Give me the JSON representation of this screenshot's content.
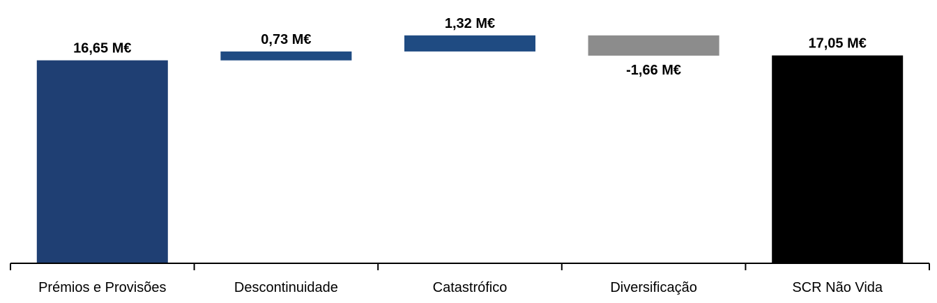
{
  "chart_data": {
    "type": "bar",
    "subtype": "waterfall",
    "categories": [
      "Prémios e Provisões",
      "Descontinuidade",
      "Catastrófico",
      "Diversificação",
      "SCR Não Vida"
    ],
    "values": [
      16.65,
      0.73,
      1.32,
      -1.66,
      17.05
    ],
    "data_labels": [
      "16,65 M€",
      "0,73 M€",
      "1,32 M€",
      "-1,66 M€",
      "17,05 M€"
    ],
    "bar_kinds": [
      "total",
      "increase",
      "increase",
      "decrease",
      "total"
    ],
    "colors": {
      "total_first": "#1F3F73",
      "increase": "#1F4B82",
      "decrease": "#8C8C8C",
      "total_last": "#000000"
    },
    "title": "",
    "xlabel": "",
    "ylabel": "",
    "ylim": [
      0,
      18.7
    ],
    "grid": false,
    "legend": "none"
  }
}
